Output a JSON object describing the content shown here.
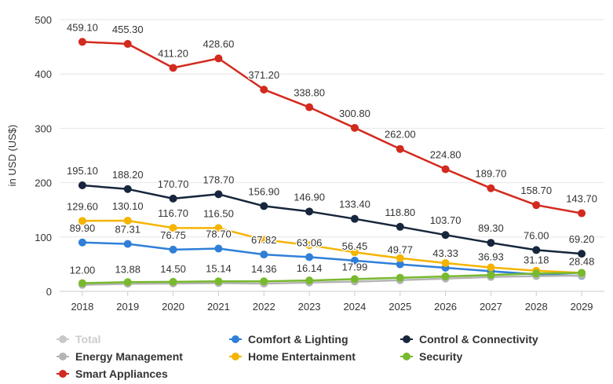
{
  "chart_data": {
    "type": "line",
    "title": "",
    "xlabel": "",
    "ylabel": "in USD (US$)",
    "ylim": [
      0,
      500
    ],
    "yticks": [
      0,
      100,
      200,
      300,
      400,
      500
    ],
    "grid": true,
    "legend_position": "bottom",
    "categories": [
      "2018",
      "2019",
      "2020",
      "2021",
      "2022",
      "2023",
      "2024",
      "2025",
      "2026",
      "2027",
      "2028",
      "2029"
    ],
    "series": [
      {
        "name": "Total",
        "color": "#c8c8c8",
        "hidden": true,
        "labels": false,
        "values": [
          null,
          null,
          null,
          null,
          null,
          null,
          null,
          null,
          null,
          null,
          null,
          null
        ]
      },
      {
        "name": "Comfort & Lighting",
        "color": "#2f7fd8",
        "labels": true,
        "values": [
          89.9,
          87.31,
          76.75,
          78.7,
          67.82,
          63.06,
          56.45,
          49.77,
          43.33,
          36.93,
          31.18,
          28.48
        ],
        "value_labels": [
          "89.90",
          "87.31",
          "76.75",
          "78.70",
          "67.82",
          "63.06",
          "56.45",
          "49.77",
          "43.33",
          "36.93",
          "31.18",
          "28.48"
        ]
      },
      {
        "name": "Control & Connectivity",
        "color": "#17263c",
        "labels": true,
        "values": [
          195.1,
          188.2,
          170.7,
          178.7,
          156.9,
          146.9,
          133.4,
          118.8,
          103.7,
          89.3,
          76.0,
          69.2
        ],
        "value_labels": [
          "195.10",
          "188.20",
          "170.70",
          "178.70",
          "156.90",
          "146.90",
          "133.40",
          "118.80",
          "103.70",
          "89.30",
          "76.00",
          "69.20"
        ]
      },
      {
        "name": "Energy Management",
        "color": "#b4b4b4",
        "labels": true,
        "values": [
          12.0,
          13.88,
          14.5,
          15.14,
          14.36,
          16.14,
          17.99,
          20.5,
          23.5,
          26.5,
          28.0,
          29.0
        ],
        "value_labels": [
          "12.00",
          "13.88",
          "14.50",
          "15.14",
          "14.36",
          "16.14",
          "17.99",
          "",
          "",
          "",
          "",
          ""
        ]
      },
      {
        "name": "Home Entertainment",
        "color": "#f5b400",
        "labels": true,
        "values": [
          129.6,
          130.1,
          116.7,
          116.5,
          95.0,
          85.0,
          72.0,
          61.0,
          52.0,
          44.0,
          38.0,
          34.0
        ],
        "value_labels": [
          "129.60",
          "130.10",
          "116.70",
          "116.50",
          "",
          "",
          "",
          "",
          "",
          "",
          "",
          ""
        ]
      },
      {
        "name": "Security",
        "color": "#78b92d",
        "labels": false,
        "values": [
          15.0,
          17.0,
          17.5,
          18.5,
          18.5,
          20.0,
          22.5,
          25.0,
          27.5,
          30.0,
          33.0,
          34.0
        ]
      },
      {
        "name": "Smart Appliances",
        "color": "#d22a1e",
        "labels": true,
        "values": [
          459.1,
          455.3,
          411.2,
          428.6,
          371.2,
          338.8,
          300.8,
          262.0,
          224.8,
          189.7,
          158.7,
          143.7
        ],
        "value_labels": [
          "459.10",
          "455.30",
          "411.20",
          "428.60",
          "371.20",
          "338.80",
          "300.80",
          "262.00",
          "224.80",
          "189.70",
          "158.70",
          "143.70"
        ]
      }
    ]
  },
  "legend": [
    {
      "label": "Total",
      "color": "#c8c8c8",
      "hidden": true
    },
    {
      "label": "Comfort & Lighting",
      "color": "#2f7fd8"
    },
    {
      "label": "Control & Connectivity",
      "color": "#17263c"
    },
    {
      "label": "Energy Management",
      "color": "#b4b4b4"
    },
    {
      "label": "Home Entertainment",
      "color": "#f5b400"
    },
    {
      "label": "Security",
      "color": "#78b92d"
    },
    {
      "label": "Smart Appliances",
      "color": "#d22a1e"
    }
  ]
}
